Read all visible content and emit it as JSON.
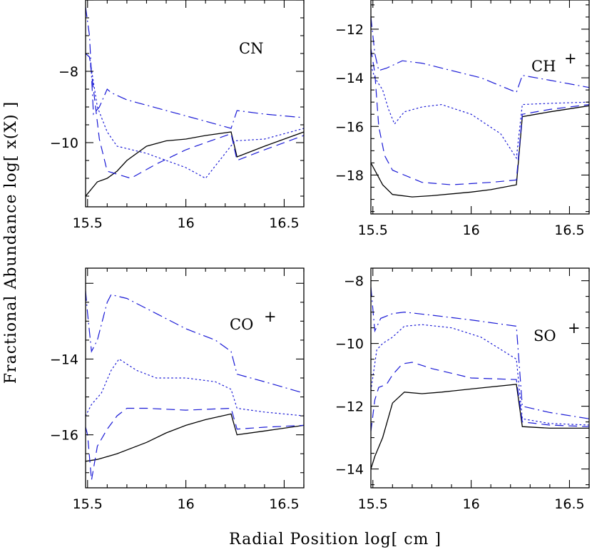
{
  "figure": {
    "xlabel": "Radial Position log[ cm ]",
    "ylabel": "Fractional Abundance log[ x(X) ]",
    "line_colors": {
      "solid": "#000000",
      "dashed": "#1a1ad6",
      "dotted": "#1a1ad6",
      "dashdot": "#1a1ad6"
    }
  },
  "chart_data": [
    {
      "type": "line",
      "panel": "top-left",
      "label": "CN",
      "label_sup": "",
      "xlim": [
        15.49,
        16.6
      ],
      "ylim": [
        -11.8,
        -6.0
      ],
      "xticks": [
        15.5,
        16,
        16.5
      ],
      "yticks": [
        -8,
        -10
      ],
      "xtick_labels": [
        "15.5",
        "16",
        "16.5"
      ],
      "ytick_labels": [
        "−8",
        "−10"
      ],
      "series": [
        {
          "style": "solid",
          "points": [
            [
              15.49,
              -11.5
            ],
            [
              15.55,
              -11.1
            ],
            [
              15.6,
              -11.0
            ],
            [
              15.65,
              -10.8
            ],
            [
              15.7,
              -10.5
            ],
            [
              15.8,
              -10.1
            ],
            [
              15.9,
              -9.95
            ],
            [
              16.0,
              -9.9
            ],
            [
              16.1,
              -9.8
            ],
            [
              16.23,
              -9.7
            ],
            [
              16.26,
              -10.4
            ],
            [
              16.4,
              -10.1
            ],
            [
              16.6,
              -9.7
            ]
          ]
        },
        {
          "style": "dashed",
          "points": [
            [
              15.49,
              -7.5
            ],
            [
              15.51,
              -7.6
            ],
            [
              15.53,
              -8.5
            ],
            [
              15.56,
              -9.9
            ],
            [
              15.6,
              -10.8
            ],
            [
              15.66,
              -10.9
            ],
            [
              15.72,
              -11.0
            ],
            [
              15.85,
              -10.6
            ],
            [
              16.0,
              -10.2
            ],
            [
              16.1,
              -10.0
            ],
            [
              16.23,
              -9.75
            ],
            [
              16.26,
              -10.5
            ],
            [
              16.4,
              -10.2
            ],
            [
              16.6,
              -9.8
            ]
          ]
        },
        {
          "style": "dotted",
          "points": [
            [
              15.49,
              -7.5
            ],
            [
              15.51,
              -7.6
            ],
            [
              15.55,
              -9.0
            ],
            [
              15.6,
              -9.7
            ],
            [
              15.65,
              -10.1
            ],
            [
              15.8,
              -10.3
            ],
            [
              16.0,
              -10.7
            ],
            [
              16.1,
              -11.0
            ],
            [
              16.25,
              -9.95
            ],
            [
              16.4,
              -9.9
            ],
            [
              16.6,
              -9.6
            ]
          ]
        },
        {
          "style": "dashdot",
          "points": [
            [
              15.49,
              -6.2
            ],
            [
              15.51,
              -7.0
            ],
            [
              15.53,
              -9.2
            ],
            [
              15.56,
              -9.0
            ],
            [
              15.6,
              -8.5
            ],
            [
              15.62,
              -8.6
            ],
            [
              15.7,
              -8.8
            ],
            [
              15.9,
              -9.1
            ],
            [
              16.1,
              -9.4
            ],
            [
              16.23,
              -9.6
            ],
            [
              16.26,
              -9.1
            ],
            [
              16.4,
              -9.2
            ],
            [
              16.6,
              -9.3
            ]
          ]
        }
      ]
    },
    {
      "type": "line",
      "panel": "top-right",
      "label": "CH",
      "label_sup": "+",
      "xlim": [
        15.49,
        16.6
      ],
      "ylim": [
        -19.6,
        -10.8
      ],
      "xticks": [
        15.5,
        16,
        16.5
      ],
      "yticks": [
        -12,
        -14,
        -16,
        -18
      ],
      "xtick_labels": [
        "15.5",
        "16",
        "16.5"
      ],
      "ytick_labels": [
        "−12",
        "−14",
        "−16",
        "−18"
      ],
      "series": [
        {
          "style": "solid",
          "points": [
            [
              15.49,
              -17.5
            ],
            [
              15.55,
              -18.4
            ],
            [
              15.6,
              -18.8
            ],
            [
              15.7,
              -18.9
            ],
            [
              15.8,
              -18.85
            ],
            [
              16.0,
              -18.7
            ],
            [
              16.1,
              -18.6
            ],
            [
              16.23,
              -18.4
            ],
            [
              16.26,
              -15.6
            ],
            [
              16.4,
              -15.4
            ],
            [
              16.6,
              -15.15
            ]
          ]
        },
        {
          "style": "dashed",
          "points": [
            [
              15.49,
              -12.8
            ],
            [
              15.51,
              -13.8
            ],
            [
              15.53,
              -16.0
            ],
            [
              15.56,
              -17.2
            ],
            [
              15.6,
              -17.8
            ],
            [
              15.66,
              -18.0
            ],
            [
              15.75,
              -18.3
            ],
            [
              15.9,
              -18.4
            ],
            [
              16.1,
              -18.3
            ],
            [
              16.23,
              -18.2
            ],
            [
              16.26,
              -15.5
            ],
            [
              16.4,
              -15.3
            ],
            [
              16.6,
              -15.1
            ]
          ]
        },
        {
          "style": "dotted",
          "points": [
            [
              15.49,
              -13.5
            ],
            [
              15.51,
              -14.0
            ],
            [
              15.55,
              -14.5
            ],
            [
              15.58,
              -15.3
            ],
            [
              15.61,
              -15.9
            ],
            [
              15.66,
              -15.4
            ],
            [
              15.75,
              -15.2
            ],
            [
              15.85,
              -15.1
            ],
            [
              16.0,
              -15.5
            ],
            [
              16.15,
              -16.3
            ],
            [
              16.23,
              -17.3
            ],
            [
              16.26,
              -15.1
            ],
            [
              16.4,
              -15.05
            ],
            [
              16.6,
              -15.0
            ]
          ]
        },
        {
          "style": "dashdot",
          "points": [
            [
              15.49,
              -11.5
            ],
            [
              15.51,
              -13.0
            ],
            [
              15.53,
              -13.7
            ],
            [
              15.57,
              -13.6
            ],
            [
              15.65,
              -13.3
            ],
            [
              15.75,
              -13.4
            ],
            [
              15.9,
              -13.7
            ],
            [
              16.05,
              -14.0
            ],
            [
              16.23,
              -14.6
            ],
            [
              16.26,
              -13.9
            ],
            [
              16.4,
              -14.1
            ],
            [
              16.6,
              -14.4
            ]
          ]
        }
      ]
    },
    {
      "type": "line",
      "panel": "bottom-left",
      "label": "CO",
      "label_sup": "+",
      "xlim": [
        15.49,
        16.6
      ],
      "ylim": [
        -17.4,
        -11.6
      ],
      "xticks": [
        15.5,
        16,
        16.5
      ],
      "yticks": [
        -14,
        -16
      ],
      "xtick_labels": [
        "15.5",
        "16",
        "16.5"
      ],
      "ytick_labels": [
        "−14",
        "−16"
      ],
      "series": [
        {
          "style": "solid",
          "points": [
            [
              15.49,
              -16.7
            ],
            [
              15.55,
              -16.65
            ],
            [
              15.65,
              -16.5
            ],
            [
              15.8,
              -16.2
            ],
            [
              15.9,
              -15.95
            ],
            [
              16.0,
              -15.75
            ],
            [
              16.1,
              -15.6
            ],
            [
              16.23,
              -15.45
            ],
            [
              16.26,
              -16.0
            ],
            [
              16.4,
              -15.9
            ],
            [
              16.6,
              -15.75
            ]
          ]
        },
        {
          "style": "dashed",
          "points": [
            [
              15.49,
              -15.8
            ],
            [
              15.5,
              -16.0
            ],
            [
              15.52,
              -17.2
            ],
            [
              15.55,
              -16.3
            ],
            [
              15.6,
              -15.85
            ],
            [
              15.65,
              -15.5
            ],
            [
              15.7,
              -15.3
            ],
            [
              15.8,
              -15.3
            ],
            [
              16.0,
              -15.35
            ],
            [
              16.23,
              -15.3
            ],
            [
              16.26,
              -15.85
            ],
            [
              16.4,
              -15.8
            ],
            [
              16.6,
              -15.75
            ]
          ]
        },
        {
          "style": "dotted",
          "points": [
            [
              15.49,
              -15.5
            ],
            [
              15.52,
              -15.2
            ],
            [
              15.57,
              -14.9
            ],
            [
              15.62,
              -14.3
            ],
            [
              15.66,
              -14.0
            ],
            [
              15.75,
              -14.3
            ],
            [
              15.85,
              -14.5
            ],
            [
              16.0,
              -14.5
            ],
            [
              16.15,
              -14.6
            ],
            [
              16.23,
              -14.8
            ],
            [
              16.26,
              -15.3
            ],
            [
              16.4,
              -15.4
            ],
            [
              16.6,
              -15.5
            ]
          ]
        },
        {
          "style": "dashdot",
          "points": [
            [
              15.49,
              -12.2
            ],
            [
              15.5,
              -12.8
            ],
            [
              15.52,
              -13.8
            ],
            [
              15.55,
              -13.5
            ],
            [
              15.6,
              -12.5
            ],
            [
              15.62,
              -12.3
            ],
            [
              15.7,
              -12.4
            ],
            [
              15.85,
              -12.8
            ],
            [
              16.0,
              -13.2
            ],
            [
              16.15,
              -13.5
            ],
            [
              16.23,
              -13.8
            ],
            [
              16.26,
              -14.4
            ],
            [
              16.4,
              -14.6
            ],
            [
              16.6,
              -14.9
            ]
          ]
        }
      ]
    },
    {
      "type": "line",
      "panel": "bottom-right",
      "label": "SO",
      "label_sup": "+",
      "xlim": [
        15.49,
        16.6
      ],
      "ylim": [
        -14.6,
        -7.6
      ],
      "xticks": [
        15.5,
        16,
        16.5
      ],
      "yticks": [
        -8,
        -10,
        -12,
        -14
      ],
      "xtick_labels": [
        "15.5",
        "16",
        "16.5"
      ],
      "ytick_labels": [
        "−8",
        "−10",
        "−12",
        "−14"
      ],
      "series": [
        {
          "style": "solid",
          "points": [
            [
              15.49,
              -14.0
            ],
            [
              15.51,
              -13.6
            ],
            [
              15.55,
              -13.0
            ],
            [
              15.6,
              -11.9
            ],
            [
              15.66,
              -11.55
            ],
            [
              15.75,
              -11.6
            ],
            [
              15.85,
              -11.55
            ],
            [
              16.0,
              -11.45
            ],
            [
              16.23,
              -11.3
            ],
            [
              16.26,
              -12.65
            ],
            [
              16.4,
              -12.7
            ],
            [
              16.6,
              -12.7
            ]
          ]
        },
        {
          "style": "dashed",
          "points": [
            [
              15.49,
              -12.8
            ],
            [
              15.51,
              -11.8
            ],
            [
              15.53,
              -11.4
            ],
            [
              15.57,
              -11.3
            ],
            [
              15.6,
              -11.0
            ],
            [
              15.65,
              -10.65
            ],
            [
              15.7,
              -10.6
            ],
            [
              15.8,
              -10.8
            ],
            [
              16.0,
              -11.1
            ],
            [
              16.23,
              -11.15
            ],
            [
              16.26,
              -12.5
            ],
            [
              16.4,
              -12.6
            ],
            [
              16.6,
              -12.65
            ]
          ]
        },
        {
          "style": "dotted",
          "points": [
            [
              15.49,
              -11.5
            ],
            [
              15.52,
              -10.2
            ],
            [
              15.55,
              -10.0
            ],
            [
              15.6,
              -9.8
            ],
            [
              15.66,
              -9.45
            ],
            [
              15.75,
              -9.4
            ],
            [
              15.9,
              -9.5
            ],
            [
              16.05,
              -9.8
            ],
            [
              16.23,
              -10.5
            ],
            [
              16.26,
              -12.4
            ],
            [
              16.4,
              -12.55
            ],
            [
              16.6,
              -12.6
            ]
          ]
        },
        {
          "style": "dashdot",
          "points": [
            [
              15.49,
              -8.2
            ],
            [
              15.51,
              -9.6
            ],
            [
              15.54,
              -9.2
            ],
            [
              15.6,
              -9.05
            ],
            [
              15.66,
              -9.0
            ],
            [
              15.8,
              -9.1
            ],
            [
              16.0,
              -9.25
            ],
            [
              16.23,
              -9.45
            ],
            [
              16.26,
              -12.0
            ],
            [
              16.4,
              -12.2
            ],
            [
              16.6,
              -12.4
            ]
          ]
        }
      ]
    }
  ]
}
